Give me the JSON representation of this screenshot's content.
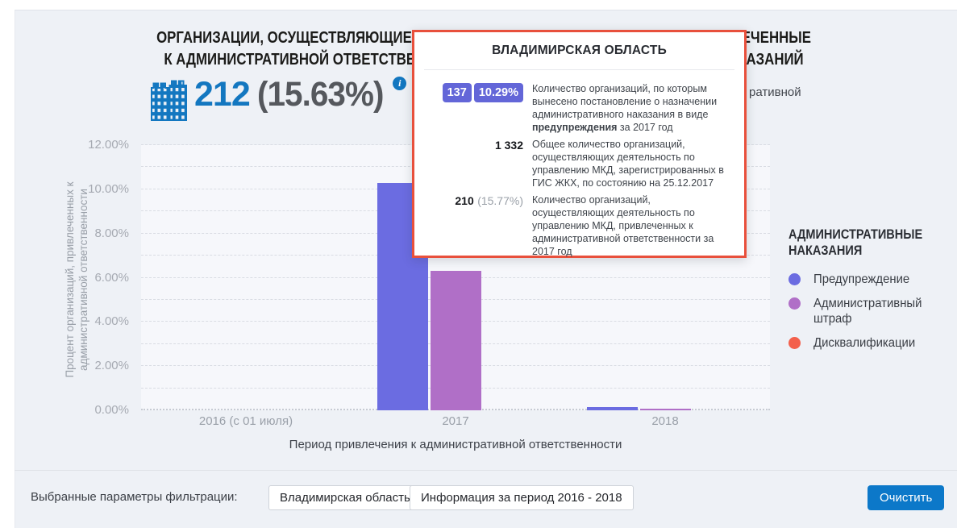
{
  "colors": {
    "primary_blue": "#1377c0",
    "badge_bg": "#6366d8",
    "tooltip_border": "#e8503c",
    "button_bg": "#0c78c9",
    "page_bg": "#eef1f6"
  },
  "header": {
    "title_line1": "ОРГАНИЗАЦИИ, ОСУЩЕСТВЛЯЮЩИЕ ДЕЯТЕЛЬНОСТЬ ПО УПРАВЛЕНИЮ МКД, ПРИВЛЕЧЕННЫЕ",
    "title_line2": "К АДМИНИСТРАТИВНОЙ ОТВЕТСТВЕННОСТИ, В РАЗРЕЗЕ АДМИНИСТРАТИВНЫХ НАКАЗАНИЙ",
    "stat_value": "212",
    "stat_percent": "(15.63%)",
    "info_icon_glyph": "i",
    "subtitle_visible_fragment": "ративной"
  },
  "chart_data": {
    "type": "bar",
    "categories": [
      "2016 (с 01 июля)",
      "2017",
      "2018"
    ],
    "series": [
      {
        "key": "warning",
        "name": "Предупреждение",
        "color": "#6b6ce1",
        "values": [
          0,
          10.29,
          0.15
        ]
      },
      {
        "key": "fine",
        "name": "Административный штраф",
        "color": "#b06fc7",
        "values": [
          0,
          6.3,
          0.08
        ]
      },
      {
        "key": "disqualification",
        "name": "Дисквалификации",
        "color": "#f3604c",
        "values": [
          0,
          0,
          0
        ]
      }
    ],
    "xlabel": "Период привлечения к административной ответственности",
    "ylabel": "Процент организаций, привлеченных к административной ответственности",
    "ylim": [
      0,
      12
    ],
    "ytick_labels": [
      "0.00%",
      "2.00%",
      "4.00%",
      "6.00%",
      "8.00%",
      "10.00%",
      "12.00%"
    ],
    "grid": "horizontal dashed, minor every 1%, labels every 2%",
    "legend_position": "right"
  },
  "legend": {
    "title_line1": "АДМИНИСТРАТИВНЫЕ",
    "title_line2": "НАКАЗАНИЯ",
    "items": [
      {
        "label": "Предупреждение",
        "color": "#6b6ce1"
      },
      {
        "label": "Административный штраф",
        "color": "#b06fc7"
      },
      {
        "label": "Дисквалификации",
        "color": "#f3604c"
      }
    ]
  },
  "tooltip": {
    "title": "ВЛАДИМИРСКАЯ ОБЛАСТЬ",
    "rows": [
      {
        "badges": [
          "137",
          "10.29%"
        ],
        "desc_before": "Количество организаций, по которым вынесено постановление о назначении административного наказания в виде ",
        "desc_bold": "предупреждения",
        "desc_after": " за 2017 год"
      },
      {
        "value": "1 332",
        "desc": "Общее количество организаций, осуществляющих деятельность по управлению МКД, зарегистрированных в ГИС ЖКХ, по состоянию на 25.12.2017"
      },
      {
        "value": "210",
        "value_percent": "(15.77%)",
        "desc": "Количество организаций, осуществляющих деятельность по управлению МКД, привлеченных к административной ответственности за 2017 год"
      }
    ]
  },
  "filter_bar": {
    "label": "Выбранные параметры фильтрации:",
    "chips": [
      "Владимирская область",
      "Информация за период 2016 - 2018"
    ],
    "clear_button": "Очистить"
  }
}
